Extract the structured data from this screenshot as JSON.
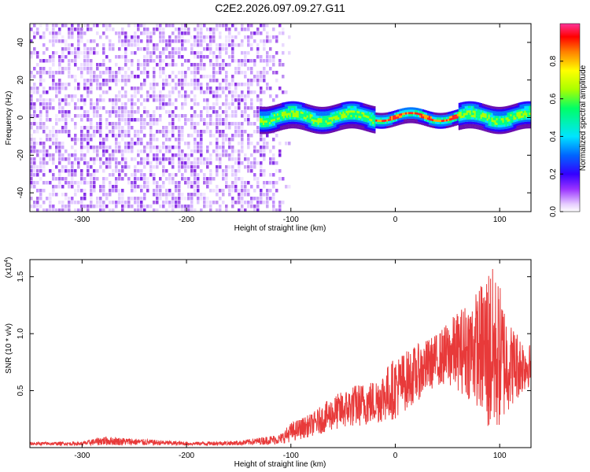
{
  "title": "C2E2.2026.097.09.27.G11",
  "chart_data": [
    {
      "type": "heatmap",
      "xlabel": "Height of straight line (km)",
      "ylabel": "Frequency (Hz)",
      "xlim": [
        -350,
        130
      ],
      "ylim": [
        -50,
        50
      ],
      "x_ticks": [
        -300,
        -200,
        -100,
        0,
        100
      ],
      "x_tick_labels": [
        "-300",
        "-200",
        "-100",
        "0",
        "100"
      ],
      "y_ticks": [
        -40,
        -20,
        0,
        20,
        40
      ],
      "y_tick_labels": [
        "-40",
        "-20",
        "0",
        "20",
        "40"
      ],
      "noise_region_x": [
        -350,
        -110
      ],
      "signal_region_x": [
        -130,
        130
      ],
      "signal_center_freq_hz": 1,
      "signal_half_width_hz": 7,
      "peak_region_x": [
        -20,
        60
      ],
      "colorbar": {
        "label": "Normalized spectral amplitude",
        "range": [
          0,
          1
        ],
        "ticks": [
          0.0,
          0.2,
          0.4,
          0.6,
          0.8
        ],
        "tick_labels": [
          "0.0",
          "0.2",
          "0.4",
          "0.6",
          "0.8"
        ],
        "colors": [
          "#ffffff",
          "#cc99ff",
          "#7a1fe6",
          "#0000ff",
          "#00e5ff",
          "#00ff66",
          "#ffff00",
          "#ff8000",
          "#ff0000",
          "#ff33aa"
        ]
      }
    },
    {
      "type": "line",
      "xlabel": "Height of straight line (km)",
      "ylabel": "SNR (10 * v/v)",
      "scale_label": "(x10",
      "scale_exponent": "4",
      "scale_close": ")",
      "xlim": [
        -350,
        130
      ],
      "ylim": [
        0,
        1.65
      ],
      "x_ticks": [
        -300,
        -200,
        -100,
        0,
        100
      ],
      "x_tick_labels": [
        "-300",
        "-200",
        "-100",
        "0",
        "100"
      ],
      "y_ticks": [
        0.5,
        1.0,
        1.5
      ],
      "y_tick_labels": [
        "0.5",
        "1.0",
        "1.5"
      ],
      "line_color": "#e83a3a",
      "envelope": {
        "x": [
          -350,
          -300,
          -280,
          -200,
          -150,
          -110,
          -100,
          -80,
          -60,
          -40,
          -20,
          0,
          20,
          40,
          60,
          80,
          90,
          100,
          110,
          130
        ],
        "lo": [
          0.02,
          0.02,
          0.02,
          0.02,
          0.02,
          0.03,
          0.05,
          0.1,
          0.15,
          0.18,
          0.2,
          0.25,
          0.4,
          0.55,
          0.5,
          0.35,
          0.05,
          0.15,
          0.35,
          0.55
        ],
        "hi": [
          0.05,
          0.05,
          0.1,
          0.05,
          0.06,
          0.12,
          0.22,
          0.3,
          0.45,
          0.55,
          0.6,
          0.8,
          0.9,
          1.0,
          1.2,
          1.4,
          1.65,
          1.45,
          1.1,
          0.9
        ]
      }
    }
  ]
}
